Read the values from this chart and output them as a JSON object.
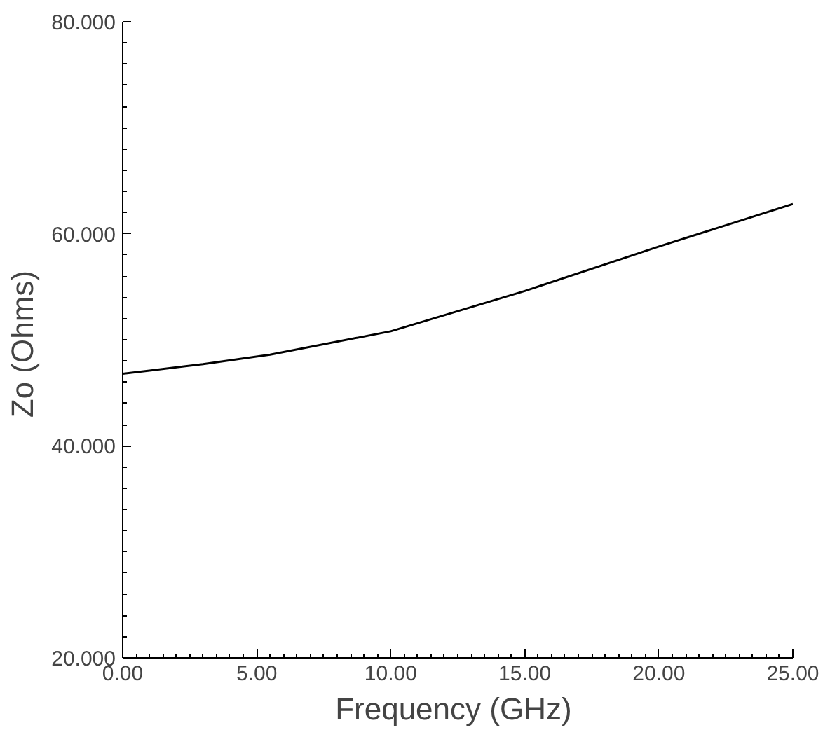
{
  "chart_data": {
    "type": "line",
    "xlabel": "Frequency  (GHz)",
    "ylabel": "Zo  (Ohms)",
    "x": [
      0,
      1,
      3,
      5.5,
      10,
      15,
      20,
      25
    ],
    "series": [
      {
        "color": "#000000",
        "values": [
          46.8,
          47.1,
          47.7,
          48.6,
          50.8,
          54.6,
          58.8,
          62.8
        ]
      }
    ],
    "xlim": [
      0,
      25
    ],
    "ylim": [
      20,
      80
    ],
    "xticks": [
      {
        "value": 0,
        "label": "0.00"
      },
      {
        "value": 5,
        "label": "5.00"
      },
      {
        "value": 10,
        "label": "10.00"
      },
      {
        "value": 15,
        "label": "15.00"
      },
      {
        "value": 20,
        "label": "20.00"
      },
      {
        "value": 25,
        "label": "25.00"
      }
    ],
    "yticks": [
      {
        "value": 20,
        "label": "20.000"
      },
      {
        "value": 40,
        "label": "40.000"
      },
      {
        "value": 60,
        "label": "60.000"
      },
      {
        "value": 80,
        "label": "80.000"
      }
    ],
    "grid": false,
    "marker": "none",
    "line_style": "solid"
  }
}
